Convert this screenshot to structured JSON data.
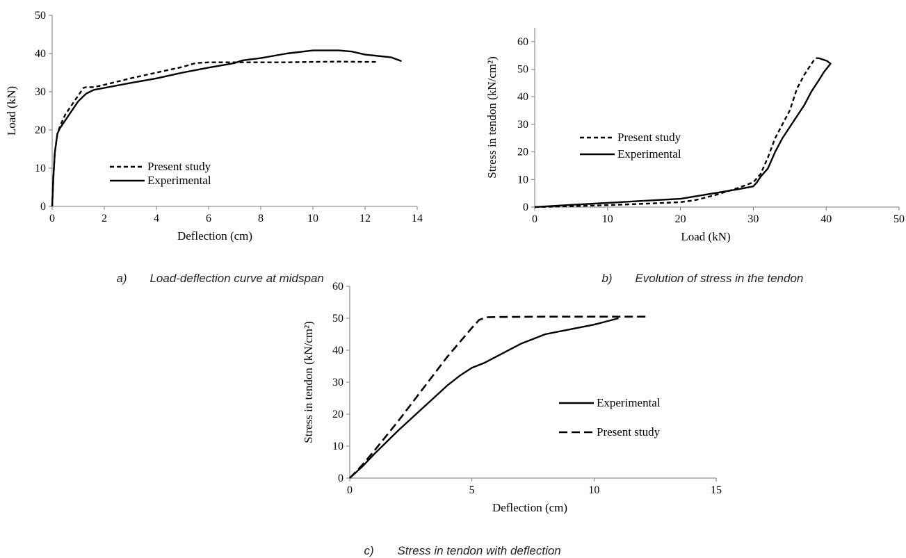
{
  "captions": {
    "a_letter": "a)",
    "a_text": "Load-deflection curve at midspan",
    "b_letter": "b)",
    "b_text": "Evolution of stress in the tendon",
    "c_letter": "c)",
    "c_text": "Stress in tendon with deflection"
  },
  "chart_data": [
    {
      "id": "a",
      "type": "line",
      "xlabel": "Deflection (cm)",
      "ylabel": "Load (kN)",
      "xlim": [
        0,
        14
      ],
      "ylim": [
        0,
        50
      ],
      "xticks": [
        "0",
        "2",
        "4",
        "6",
        "8",
        "10",
        "12",
        "14"
      ],
      "yticks": [
        "0",
        "10",
        "20",
        "30",
        "40",
        "50"
      ],
      "grid": false,
      "legend_position": "lower-center",
      "series": [
        {
          "name": "Present study",
          "style": "dashed",
          "x": [
            0,
            0.05,
            0.1,
            0.2,
            0.3,
            0.5,
            0.8,
            1.1,
            1.2,
            1.3,
            1.6,
            2,
            3,
            4,
            5,
            5.5,
            6,
            7,
            8,
            9,
            10,
            11,
            12,
            12.5
          ],
          "y": [
            0,
            8,
            14,
            19,
            21,
            24,
            27,
            30,
            31,
            31.2,
            31.2,
            31.8,
            33.5,
            35,
            36.5,
            37.5,
            37.7,
            37.7,
            37.7,
            37.7,
            37.8,
            37.9,
            37.8,
            37.8
          ]
        },
        {
          "name": "Experimental",
          "style": "solid",
          "x": [
            0,
            0.05,
            0.1,
            0.2,
            0.3,
            0.5,
            0.8,
            1.0,
            1.3,
            1.6,
            2,
            3,
            4,
            5,
            6,
            7,
            7.3,
            8,
            9,
            10,
            11,
            11.5,
            12,
            13,
            13.4
          ],
          "y": [
            0,
            8,
            14,
            19,
            20.5,
            22.5,
            25.5,
            27.5,
            29.5,
            30.5,
            31,
            32.3,
            33.5,
            35,
            36.3,
            37.5,
            38.2,
            38.8,
            40,
            40.8,
            40.8,
            40.5,
            39.7,
            39,
            38
          ]
        }
      ]
    },
    {
      "id": "b",
      "type": "line",
      "xlabel": "Load (kN)",
      "ylabel": "Stress in tendon  (kN/cm²)",
      "xlim": [
        0,
        50
      ],
      "ylim": [
        0,
        65
      ],
      "xticks": [
        "0",
        "10",
        "20",
        "30",
        "40",
        "50"
      ],
      "yticks": [
        "0",
        "10",
        "20",
        "30",
        "40",
        "50",
        "60"
      ],
      "grid": false,
      "legend_position": "center-left",
      "series": [
        {
          "name": "Present study",
          "style": "dashed",
          "x": [
            0,
            5,
            10,
            15,
            20,
            22,
            25,
            28,
            30,
            31,
            32,
            33,
            34,
            35,
            36,
            37,
            38,
            38.5
          ],
          "y": [
            0,
            0.3,
            0.7,
            1.2,
            1.8,
            2.5,
            4.5,
            7,
            9,
            12,
            18,
            25,
            30,
            35,
            43,
            48,
            52,
            54
          ]
        },
        {
          "name": "Experimental",
          "style": "solid",
          "x": [
            0,
            5,
            10,
            15,
            20,
            25,
            28,
            30,
            30.5,
            31,
            32,
            33,
            34,
            35,
            36,
            37,
            38,
            39,
            39.7,
            40.3,
            40.6,
            40.1,
            39,
            38.6
          ],
          "y": [
            0,
            0.8,
            1.5,
            2.3,
            3,
            5.2,
            6.5,
            7.5,
            9,
            11,
            14,
            20,
            25,
            29,
            33,
            37,
            42,
            46,
            49,
            51,
            52,
            53,
            54,
            54
          ]
        }
      ]
    },
    {
      "id": "c",
      "type": "line",
      "xlabel": "Deflection (cm)",
      "ylabel": "Stress in tendon  (kN/cm²)",
      "xlim": [
        0,
        15
      ],
      "ylim": [
        0,
        60
      ],
      "xticks": [
        "0",
        "5",
        "10",
        "15"
      ],
      "yticks": [
        "0",
        "10",
        "20",
        "30",
        "40",
        "50",
        "60"
      ],
      "grid": false,
      "legend_position": "right",
      "series": [
        {
          "name": "Experimental",
          "style": "solid",
          "x": [
            0,
            0.5,
            1,
            2,
            3,
            4,
            4.5,
            5,
            5.5,
            6,
            7,
            8,
            9,
            10,
            10.5,
            11
          ],
          "y": [
            0,
            3.5,
            7.5,
            15,
            22,
            29,
            32,
            34.5,
            36,
            38,
            42,
            45,
            46.5,
            48,
            49,
            50
          ]
        },
        {
          "name": "Present study",
          "style": "dashed",
          "x": [
            0,
            0.5,
            1,
            2,
            3,
            4,
            4.5,
            5,
            5.3,
            5.6,
            6,
            8,
            10,
            11,
            12.2
          ],
          "y": [
            0,
            4,
            8.5,
            18,
            28,
            38,
            42.5,
            47,
            49.5,
            50.3,
            50.4,
            50.5,
            50.5,
            50.5,
            50.5
          ]
        }
      ]
    }
  ]
}
